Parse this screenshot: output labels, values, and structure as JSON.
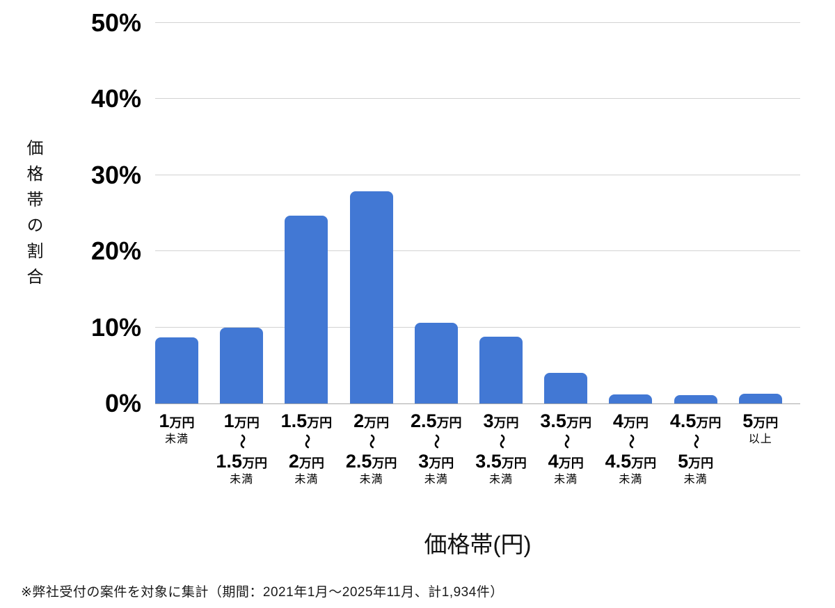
{
  "chart_data": {
    "type": "bar",
    "title": "",
    "xlabel": "価格帯(円)",
    "ylabel": "価格帯の割合",
    "ylim": [
      0,
      50
    ],
    "ytick_labels": [
      "0%",
      "10%",
      "20%",
      "30%",
      "40%",
      "50%"
    ],
    "grid": true,
    "legend_position": "none",
    "bar_color": "#4278d4",
    "categories": [
      {
        "from": "1",
        "from_unit": "万円",
        "tilde": "",
        "to": "",
        "to_unit": "",
        "qualifier": "未満"
      },
      {
        "from": "1",
        "from_unit": "万円",
        "tilde": "〜",
        "to": "1.5",
        "to_unit": "万円",
        "qualifier": "未満"
      },
      {
        "from": "1.5",
        "from_unit": "万円",
        "tilde": "〜",
        "to": "2",
        "to_unit": "万円",
        "qualifier": "未満"
      },
      {
        "from": "2",
        "from_unit": "万円",
        "tilde": "〜",
        "to": "2.5",
        "to_unit": "万円",
        "qualifier": "未満"
      },
      {
        "from": "2.5",
        "from_unit": "万円",
        "tilde": "〜",
        "to": "3",
        "to_unit": "万円",
        "qualifier": "未満"
      },
      {
        "from": "3",
        "from_unit": "万円",
        "tilde": "〜",
        "to": "3.5",
        "to_unit": "万円",
        "qualifier": "未満"
      },
      {
        "from": "3.5",
        "from_unit": "万円",
        "tilde": "〜",
        "to": "4",
        "to_unit": "万円",
        "qualifier": "未満"
      },
      {
        "from": "4",
        "from_unit": "万円",
        "tilde": "〜",
        "to": "4.5",
        "to_unit": "万円",
        "qualifier": "未満"
      },
      {
        "from": "4.5",
        "from_unit": "万円",
        "tilde": "〜",
        "to": "5",
        "to_unit": "万円",
        "qualifier": "未満"
      },
      {
        "from": "5",
        "from_unit": "万円",
        "tilde": "",
        "to": "",
        "to_unit": "",
        "qualifier": "以上"
      }
    ],
    "values": [
      8.7,
      10.0,
      24.7,
      27.9,
      10.6,
      8.8,
      4.0,
      1.2,
      1.1,
      1.3
    ]
  },
  "colors": {
    "bar": "#4278d4",
    "gridline": "#d2d2d2",
    "baseline": "#a8a8a8",
    "text": "#000000"
  },
  "footnote": "※弊社受付の案件を対象に集計（期間：2021年1月〜2025年11月、計1,934件）"
}
